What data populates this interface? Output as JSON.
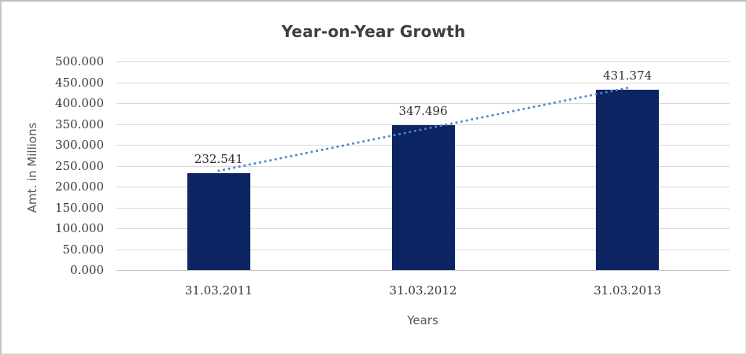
{
  "chart_data": {
    "type": "bar",
    "title": "Year-on-Year Growth",
    "xlabel": "Years",
    "ylabel": "Amt. in Millions",
    "categories": [
      "31.03.2011",
      "31.03.2012",
      "31.03.2013"
    ],
    "values": [
      232541,
      347496,
      431374
    ],
    "data_labels": [
      "232.541",
      "347.496",
      "431.374"
    ],
    "ylim": [
      0,
      500000
    ],
    "ytick_step": 50000,
    "ytick_labels": [
      "0.000",
      "50.000",
      "100.000",
      "150.000",
      "200.000",
      "250.000",
      "300.000",
      "350.000",
      "400.000",
      "450.000",
      "500.000"
    ],
    "grid": true,
    "legend": "none",
    "colors": {
      "bar": "#0c2462",
      "trendline": "#4f86c6",
      "gridline": "#d9d9d9",
      "axis_line": "#bfbfbf",
      "title_text": "#3f3f3f",
      "tick_text": "#363636",
      "axis_title_text": "#595959"
    },
    "trendline": {
      "type": "linear",
      "style": "dotted",
      "fitted_endpoints": [
        237720,
        436554
      ]
    }
  }
}
